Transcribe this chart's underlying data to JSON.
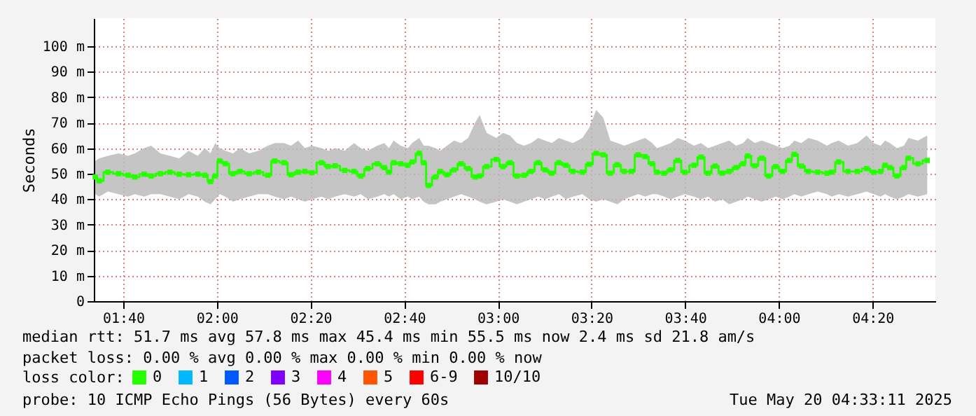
{
  "chart_data": {
    "type": "step",
    "ylabel": "Seconds",
    "legend_title": "loss color:",
    "legend": "bottom",
    "marker": "square",
    "grid": true,
    "xlim": [
      1.562,
      4.557
    ],
    "xticks": [
      {
        "value": 1.6667,
        "label": "01:40"
      },
      {
        "value": 2,
        "label": "02:00"
      },
      {
        "value": 2.3333,
        "label": "02:20"
      },
      {
        "value": 2.6667,
        "label": "02:40"
      },
      {
        "value": 3,
        "label": "03:00"
      },
      {
        "value": 3.3333,
        "label": "03:20"
      },
      {
        "value": 3.6667,
        "label": "03:40"
      },
      {
        "value": 4,
        "label": "04:00"
      },
      {
        "value": 4.3333,
        "label": "04:20"
      }
    ],
    "ylim": [
      0,
      111
    ],
    "yticks": [
      0,
      {
        "value": 10,
        "label": "10 m"
      },
      {
        "value": 20,
        "label": "20 m"
      },
      {
        "value": 30,
        "label": "30 m"
      },
      {
        "value": 40,
        "label": "40 m"
      },
      {
        "value": 50,
        "label": "50 m"
      },
      {
        "value": 60,
        "label": "60 m"
      },
      {
        "value": 70,
        "label": "70 m"
      },
      {
        "value": 80,
        "label": "80 m"
      },
      {
        "value": 90,
        "label": "90 m"
      },
      {
        "value": 100,
        "label": "100 m"
      }
    ],
    "x": [
      1.567,
      1.581,
      1.612,
      1.65,
      1.684,
      1.708,
      1.741,
      1.766,
      1.799,
      1.833,
      1.866,
      1.899,
      1.932,
      1.957,
      1.977,
      1.994,
      2.01,
      2.03,
      2.057,
      2.082,
      2.115,
      2.148,
      2.181,
      2.206,
      2.239,
      2.264,
      2.289,
      2.313,
      2.338,
      2.372,
      2.396,
      2.421,
      2.455,
      2.488,
      2.512,
      2.537,
      2.571,
      2.596,
      2.612,
      2.629,
      2.654,
      2.679,
      2.695,
      2.72,
      2.736,
      2.753,
      2.778,
      2.795,
      2.819,
      2.844,
      2.869,
      2.894,
      2.919,
      2.935,
      2.96,
      2.994,
      3.018,
      3.043,
      3.068,
      3.093,
      3.118,
      3.143,
      3.168,
      3.192,
      3.217,
      3.242,
      3.267,
      3.301,
      3.325,
      3.35,
      3.375,
      3.4,
      3.425,
      3.45,
      3.475,
      3.499,
      3.524,
      3.549,
      3.566,
      3.591,
      3.615,
      3.64,
      3.665,
      3.698,
      3.723,
      3.748,
      3.773,
      3.798,
      3.823,
      3.848,
      3.873,
      3.889,
      3.914,
      3.939,
      3.964,
      3.989,
      4.013,
      4.038,
      4.055,
      4.08,
      4.105,
      4.138,
      4.171,
      4.188,
      4.213,
      4.246,
      4.279,
      4.312,
      4.337,
      4.362,
      4.378,
      4.395,
      4.42,
      4.445,
      4.461,
      4.495,
      4.528
    ],
    "series": [
      {
        "name": "0",
        "color": "#26ff00",
        "values": [
          48.7,
          47.2,
          50.6,
          50.0,
          49.4,
          48.7,
          49.8,
          49.1,
          50.0,
          50.6,
          49.8,
          49.6,
          49.8,
          49.4,
          46.9,
          49.1,
          55.0,
          53.9,
          50.0,
          50.9,
          50.0,
          50.6,
          49.4,
          55.0,
          54.3,
          49.6,
          50.6,
          50.9,
          50.4,
          54.3,
          52.8,
          53.1,
          51.3,
          50.9,
          49.1,
          52.0,
          53.9,
          52.4,
          50.6,
          54.3,
          53.9,
          53.3,
          54.6,
          58.0,
          54.3,
          45.4,
          48.7,
          50.9,
          49.6,
          51.5,
          53.9,
          52.0,
          48.7,
          49.1,
          52.8,
          55.6,
          52.8,
          54.3,
          49.1,
          49.4,
          50.9,
          54.3,
          51.5,
          50.2,
          54.3,
          53.3,
          50.9,
          50.6,
          53.7,
          58.0,
          57.4,
          50.2,
          53.5,
          50.9,
          50.9,
          57.4,
          56.7,
          53.9,
          50.6,
          50.2,
          51.5,
          55.2,
          50.6,
          53.3,
          56.5,
          50.2,
          53.0,
          50.2,
          50.9,
          52.4,
          53.9,
          57.0,
          53.1,
          56.1,
          49.1,
          52.8,
          50.9,
          55.2,
          57.6,
          53.0,
          50.9,
          50.6,
          50.2,
          50.6,
          54.6,
          50.9,
          50.9,
          52.0,
          50.6,
          50.9,
          53.3,
          52.4,
          49.1,
          52.4,
          56.1,
          53.9,
          55.2
        ],
        "lower": [
          42,
          41,
          43,
          42,
          41,
          42,
          41,
          42,
          42,
          41,
          40,
          42,
          41,
          39,
          38,
          40,
          42,
          41,
          39,
          40,
          41,
          42,
          42,
          41,
          40,
          41,
          40,
          39,
          40,
          41,
          40,
          41,
          42,
          41,
          42,
          40,
          41,
          42,
          41,
          42,
          40,
          41,
          40,
          41,
          39,
          38,
          38,
          39,
          40,
          41,
          42,
          41,
          40,
          39,
          38,
          39,
          40,
          39,
          38,
          39,
          40,
          41,
          40,
          41,
          42,
          40,
          41,
          42,
          40,
          39,
          40,
          39,
          38,
          40,
          41,
          42,
          41,
          42,
          42,
          41,
          40,
          41,
          42,
          41,
          40,
          41,
          39,
          40,
          38,
          39,
          40,
          41,
          40,
          39,
          40,
          41,
          40,
          41,
          42,
          41,
          42,
          43,
          42,
          41,
          42,
          41,
          42,
          43,
          42,
          41,
          42,
          41,
          40,
          41,
          42,
          41,
          42
        ],
        "upper": [
          55,
          56,
          57,
          58,
          57,
          58,
          60,
          61,
          58,
          57,
          56,
          59,
          57,
          60,
          58,
          62,
          60,
          59,
          58,
          60,
          58,
          59,
          61,
          62,
          62,
          61,
          63,
          60,
          61,
          60,
          59,
          60,
          59,
          62,
          60,
          59,
          61,
          62,
          60,
          63,
          61,
          60,
          62,
          64,
          61,
          61,
          60,
          59,
          61,
          63,
          62,
          64,
          70,
          73,
          66,
          64,
          66,
          65,
          62,
          61,
          62,
          64,
          63,
          62,
          64,
          63,
          62,
          64,
          68,
          75,
          72,
          63,
          62,
          61,
          62,
          63,
          64,
          62,
          60,
          61,
          62,
          64,
          63,
          61,
          62,
          60,
          61,
          62,
          63,
          61,
          62,
          64,
          62,
          63,
          62,
          61,
          60,
          61,
          63,
          62,
          64,
          63,
          61,
          62,
          63,
          61,
          62,
          65,
          62,
          61,
          63,
          62,
          60,
          61,
          64,
          63,
          65
        ]
      },
      {
        "name": "1",
        "color": "#00b8ff",
        "values": [
          null,
          null,
          null,
          null,
          null,
          null,
          null,
          null,
          null,
          null,
          null,
          null,
          null,
          null,
          null,
          null,
          null,
          null,
          null,
          null,
          null,
          null,
          null,
          null,
          null,
          null,
          null,
          null,
          null,
          null,
          null,
          null,
          null,
          null,
          null,
          null,
          null,
          null,
          null,
          null,
          null,
          null,
          null,
          null,
          null,
          null,
          null,
          null,
          null,
          null,
          null,
          null,
          null,
          null,
          null,
          null,
          null,
          null,
          null,
          null,
          null,
          null,
          null,
          null,
          null,
          null,
          null,
          null,
          null,
          null,
          null,
          null,
          null,
          null,
          null,
          null,
          null,
          null,
          null,
          null,
          null,
          null,
          null,
          null,
          null,
          null,
          null,
          null,
          null,
          null,
          null,
          null,
          null,
          null,
          null,
          null,
          null,
          null,
          null,
          null,
          null,
          null,
          null,
          null,
          null,
          null,
          null,
          null,
          null,
          null,
          null,
          null,
          null,
          null,
          null,
          null,
          null
        ]
      },
      {
        "name": "2",
        "color": "#0059ff",
        "values": [
          null,
          null,
          null,
          null,
          null,
          null,
          null,
          null,
          null,
          null,
          null,
          null,
          null,
          null,
          null,
          null,
          null,
          null,
          null,
          null,
          null,
          null,
          null,
          null,
          null,
          null,
          null,
          null,
          null,
          null,
          null,
          null,
          null,
          null,
          null,
          null,
          null,
          null,
          null,
          null,
          null,
          null,
          null,
          null,
          null,
          null,
          null,
          null,
          null,
          null,
          null,
          null,
          null,
          null,
          null,
          null,
          null,
          null,
          null,
          null,
          null,
          null,
          null,
          null,
          null,
          null,
          null,
          null,
          null,
          null,
          null,
          null,
          null,
          null,
          null,
          null,
          null,
          null,
          null,
          null,
          null,
          null,
          null,
          null,
          null,
          null,
          null,
          null,
          null,
          null,
          null,
          null,
          null,
          null,
          null,
          null,
          null,
          null,
          null,
          null,
          null,
          null,
          null,
          null,
          null,
          null,
          null,
          null,
          null,
          null,
          null,
          null,
          null,
          null,
          null,
          null,
          null
        ]
      },
      {
        "name": "3",
        "color": "#7e00ff",
        "values": [
          null,
          null,
          null,
          null,
          null,
          null,
          null,
          null,
          null,
          null,
          null,
          null,
          null,
          null,
          null,
          null,
          null,
          null,
          null,
          null,
          null,
          null,
          null,
          null,
          null,
          null,
          null,
          null,
          null,
          null,
          null,
          null,
          null,
          null,
          null,
          null,
          null,
          null,
          null,
          null,
          null,
          null,
          null,
          null,
          null,
          null,
          null,
          null,
          null,
          null,
          null,
          null,
          null,
          null,
          null,
          null,
          null,
          null,
          null,
          null,
          null,
          null,
          null,
          null,
          null,
          null,
          null,
          null,
          null,
          null,
          null,
          null,
          null,
          null,
          null,
          null,
          null,
          null,
          null,
          null,
          null,
          null,
          null,
          null,
          null,
          null,
          null,
          null,
          null,
          null,
          null,
          null,
          null,
          null,
          null,
          null,
          null,
          null,
          null,
          null,
          null,
          null,
          null,
          null,
          null,
          null,
          null,
          null,
          null,
          null,
          null,
          null,
          null,
          null,
          null,
          null,
          null
        ]
      },
      {
        "name": "4",
        "color": "#ff00ff",
        "values": [
          null,
          null,
          null,
          null,
          null,
          null,
          null,
          null,
          null,
          null,
          null,
          null,
          null,
          null,
          null,
          null,
          null,
          null,
          null,
          null,
          null,
          null,
          null,
          null,
          null,
          null,
          null,
          null,
          null,
          null,
          null,
          null,
          null,
          null,
          null,
          null,
          null,
          null,
          null,
          null,
          null,
          null,
          null,
          null,
          null,
          null,
          null,
          null,
          null,
          null,
          null,
          null,
          null,
          null,
          null,
          null,
          null,
          null,
          null,
          null,
          null,
          null,
          null,
          null,
          null,
          null,
          null,
          null,
          null,
          null,
          null,
          null,
          null,
          null,
          null,
          null,
          null,
          null,
          null,
          null,
          null,
          null,
          null,
          null,
          null,
          null,
          null,
          null,
          null,
          null,
          null,
          null,
          null,
          null,
          null,
          null,
          null,
          null,
          null,
          null,
          null,
          null,
          null,
          null,
          null,
          null,
          null,
          null,
          null,
          null,
          null,
          null,
          null,
          null,
          null,
          null,
          null
        ]
      },
      {
        "name": "5",
        "color": "#ff5500",
        "values": [
          null,
          null,
          null,
          null,
          null,
          null,
          null,
          null,
          null,
          null,
          null,
          null,
          null,
          null,
          null,
          null,
          null,
          null,
          null,
          null,
          null,
          null,
          null,
          null,
          null,
          null,
          null,
          null,
          null,
          null,
          null,
          null,
          null,
          null,
          null,
          null,
          null,
          null,
          null,
          null,
          null,
          null,
          null,
          null,
          null,
          null,
          null,
          null,
          null,
          null,
          null,
          null,
          null,
          null,
          null,
          null,
          null,
          null,
          null,
          null,
          null,
          null,
          null,
          null,
          null,
          null,
          null,
          null,
          null,
          null,
          null,
          null,
          null,
          null,
          null,
          null,
          null,
          null,
          null,
          null,
          null,
          null,
          null,
          null,
          null,
          null,
          null,
          null,
          null,
          null,
          null,
          null,
          null,
          null,
          null,
          null,
          null,
          null,
          null,
          null,
          null,
          null,
          null,
          null,
          null,
          null,
          null,
          null,
          null,
          null,
          null,
          null,
          null,
          null,
          null,
          null,
          null
        ]
      },
      {
        "name": "6-9",
        "color": "#ff0000",
        "values": [
          null,
          null,
          null,
          null,
          null,
          null,
          null,
          null,
          null,
          null,
          null,
          null,
          null,
          null,
          null,
          null,
          null,
          null,
          null,
          null,
          null,
          null,
          null,
          null,
          null,
          null,
          null,
          null,
          null,
          null,
          null,
          null,
          null,
          null,
          null,
          null,
          null,
          null,
          null,
          null,
          null,
          null,
          null,
          null,
          null,
          null,
          null,
          null,
          null,
          null,
          null,
          null,
          null,
          null,
          null,
          null,
          null,
          null,
          null,
          null,
          null,
          null,
          null,
          null,
          null,
          null,
          null,
          null,
          null,
          null,
          null,
          null,
          null,
          null,
          null,
          null,
          null,
          null,
          null,
          null,
          null,
          null,
          null,
          null,
          null,
          null,
          null,
          null,
          null,
          null,
          null,
          null,
          null,
          null,
          null,
          null,
          null,
          null,
          null,
          null,
          null,
          null,
          null,
          null,
          null,
          null,
          null,
          null,
          null,
          null,
          null,
          null,
          null,
          null,
          null,
          null,
          null
        ]
      },
      {
        "name": "10/10",
        "color": "#a10000",
        "values": [
          null,
          null,
          null,
          null,
          null,
          null,
          null,
          null,
          null,
          null,
          null,
          null,
          null,
          null,
          null,
          null,
          null,
          null,
          null,
          null,
          null,
          null,
          null,
          null,
          null,
          null,
          null,
          null,
          null,
          null,
          null,
          null,
          null,
          null,
          null,
          null,
          null,
          null,
          null,
          null,
          null,
          null,
          null,
          null,
          null,
          null,
          null,
          null,
          null,
          null,
          null,
          null,
          null,
          null,
          null,
          null,
          null,
          null,
          null,
          null,
          null,
          null,
          null,
          null,
          null,
          null,
          null,
          null,
          null,
          null,
          null,
          null,
          null,
          null,
          null,
          null,
          null,
          null,
          null,
          null,
          null,
          null,
          null,
          null,
          null,
          null,
          null,
          null,
          null,
          null,
          null,
          null,
          null,
          null,
          null,
          null,
          null,
          null,
          null,
          null,
          null,
          null,
          null,
          null,
          null,
          null,
          null,
          null,
          null,
          null,
          null,
          null,
          null,
          null,
          null,
          null,
          null
        ]
      }
    ],
    "annotations": [
      "median rtt:  51.7 ms avg  57.8 ms max  45.4 ms min  55.5 ms now  2.4 ms sd  21.8   am/s",
      "packet loss: 0.00 % avg  0.00 % max  0.00 % min  0.00 % now",
      "probe:       10 ICMP Echo Pings (56 Bytes) every 60s",
      "Tue May 20 04:33:11 2025"
    ]
  }
}
